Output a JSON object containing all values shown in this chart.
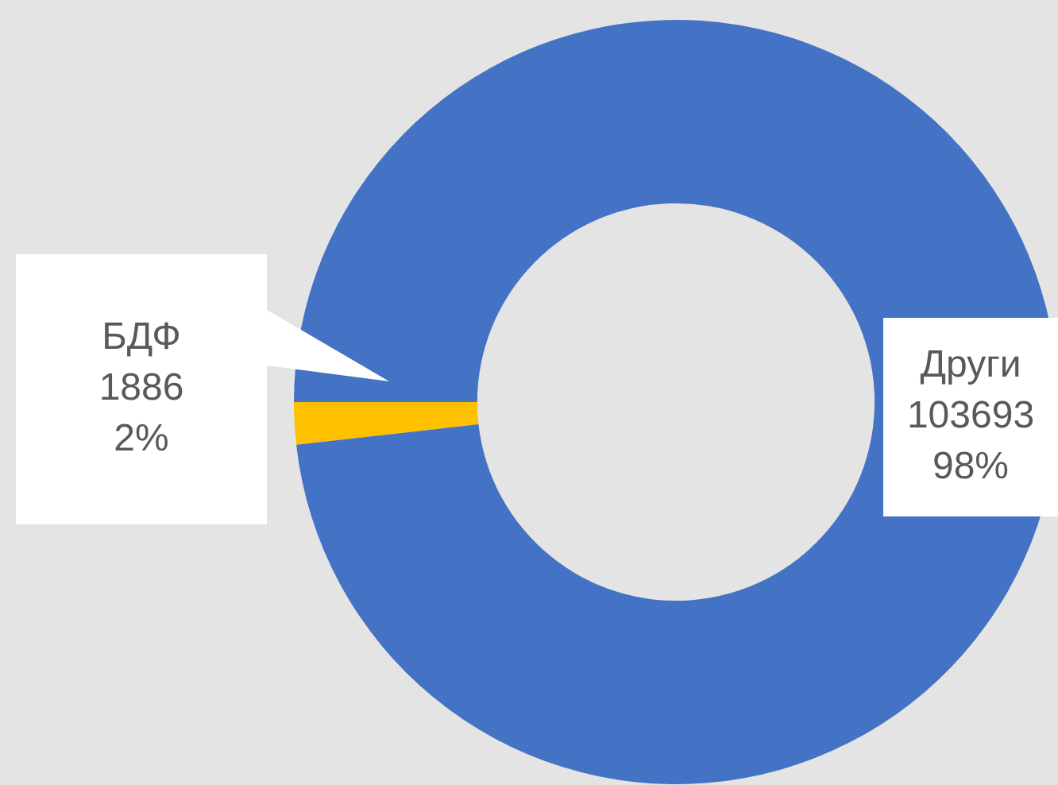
{
  "chart_data": {
    "type": "donut",
    "categories": [
      "БДФ",
      "Други"
    ],
    "values": [
      1886,
      103693
    ],
    "colors": [
      "#ffc000",
      "#4472c4"
    ],
    "value_labels": [
      "1886\n2%",
      "103693\n98%"
    ],
    "legend": false
  }
}
